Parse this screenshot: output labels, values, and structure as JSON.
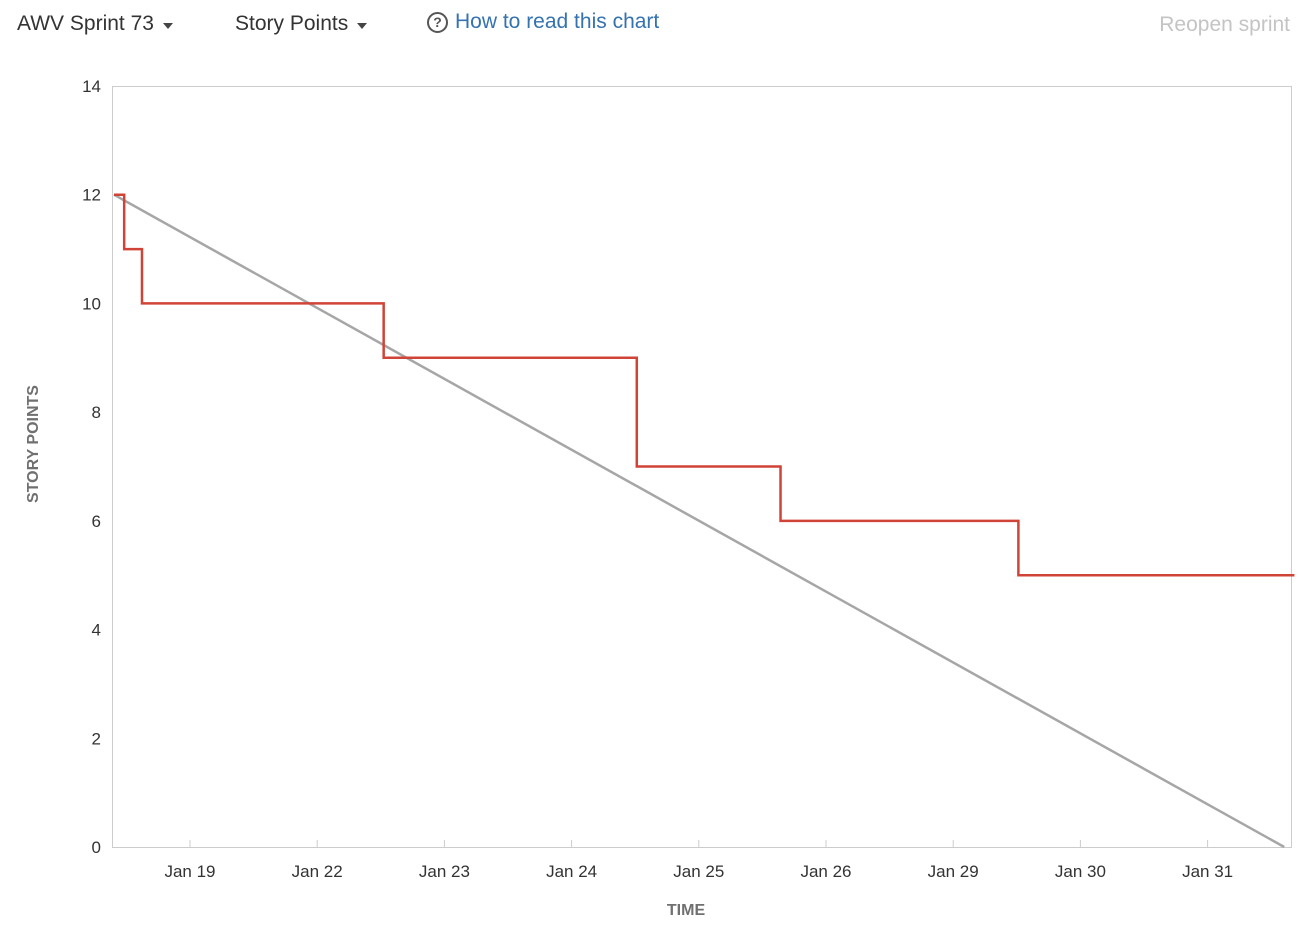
{
  "toolbar": {
    "sprint_label": "AWV Sprint 73",
    "sprint_caret_icon": "chevron-down-icon",
    "estimation_label": "Story Points",
    "estimation_caret_icon": "chevron-down-icon",
    "help_icon": "question-circle-icon",
    "help_label": "How to read this chart",
    "reopen_label": "Reopen sprint"
  },
  "chart_data": {
    "type": "line",
    "xlabel": "TIME",
    "ylabel": "STORY POINTS",
    "ylim": [
      0,
      14
    ],
    "yticks": [
      0,
      2,
      4,
      6,
      8,
      10,
      12,
      14
    ],
    "xticks": [
      "Jan 19",
      "Jan 22",
      "Jan 23",
      "Jan 24",
      "Jan 25",
      "Jan 26",
      "Jan 29",
      "Jan 30",
      "Jan 31"
    ],
    "grid": false,
    "series": [
      {
        "role": "guideline",
        "color": "#a6a6a6",
        "step": false,
        "points": [
          {
            "x": 0,
            "y": 12
          },
          {
            "x": 9.2,
            "y": 0
          }
        ]
      },
      {
        "role": "remaining",
        "color": "#d04437",
        "step": true,
        "points": [
          {
            "x": 0,
            "y": 12
          },
          {
            "x": 0.08,
            "y": 11
          },
          {
            "x": 0.22,
            "y": 10
          },
          {
            "x": 2.12,
            "y": 9
          },
          {
            "x": 4.11,
            "y": 7
          },
          {
            "x": 5.24,
            "y": 6
          },
          {
            "x": 7.11,
            "y": 5
          },
          {
            "x": 9.28,
            "y": 5
          }
        ]
      }
    ]
  }
}
